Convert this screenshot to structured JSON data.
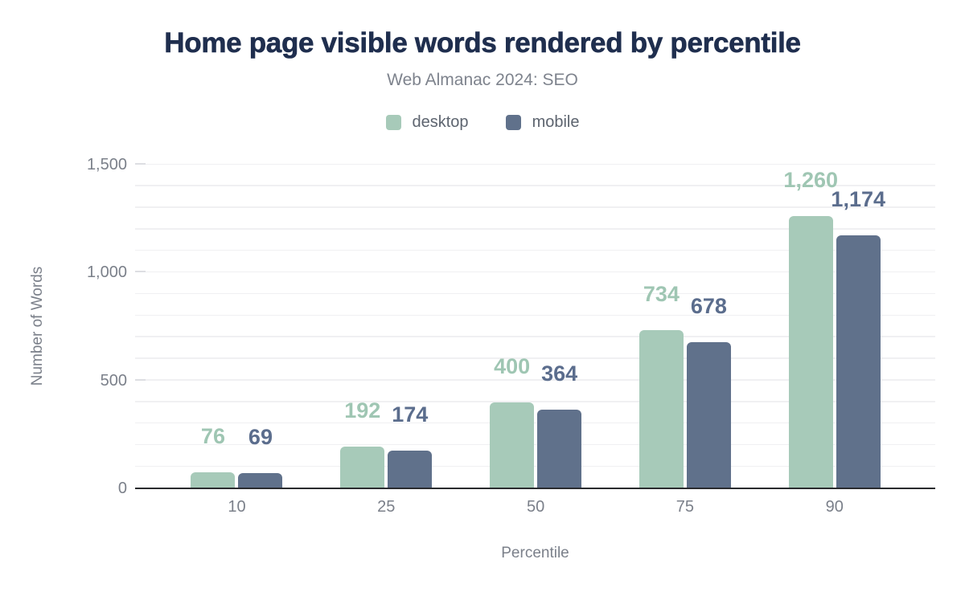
{
  "chart_data": {
    "type": "bar",
    "title": "Home page visible words rendered by percentile",
    "subtitle": "Web Almanac 2024: SEO",
    "categories": [
      "10",
      "25",
      "50",
      "75",
      "90"
    ],
    "series": [
      {
        "name": "desktop",
        "color": "#a7cab9",
        "label_color": "#9fc6b3",
        "values": [
          76,
          192,
          400,
          734,
          1260
        ]
      },
      {
        "name": "mobile",
        "color": "#60718b",
        "label_color": "#5b6d8d",
        "values": [
          69,
          174,
          364,
          678,
          1174
        ]
      }
    ],
    "xlabel": "Percentile",
    "ylabel": "Number of Words",
    "ylim": [
      0,
      1500
    ],
    "yticks": [
      0,
      500,
      1000,
      1500
    ],
    "ytick_labels": [
      "0",
      "500",
      "1,000",
      "1,500"
    ],
    "grid_interval": 100,
    "grid": "horizontal",
    "legend_position": "top",
    "colors": {
      "title": "#1f2e4e",
      "subtitle": "#7e838d",
      "axis_text": "#7b808a",
      "legend_text": "#5d646f",
      "gridline": "#f0f0f2",
      "axis_line": "#2a2b2e",
      "background": "#ffffff"
    }
  }
}
